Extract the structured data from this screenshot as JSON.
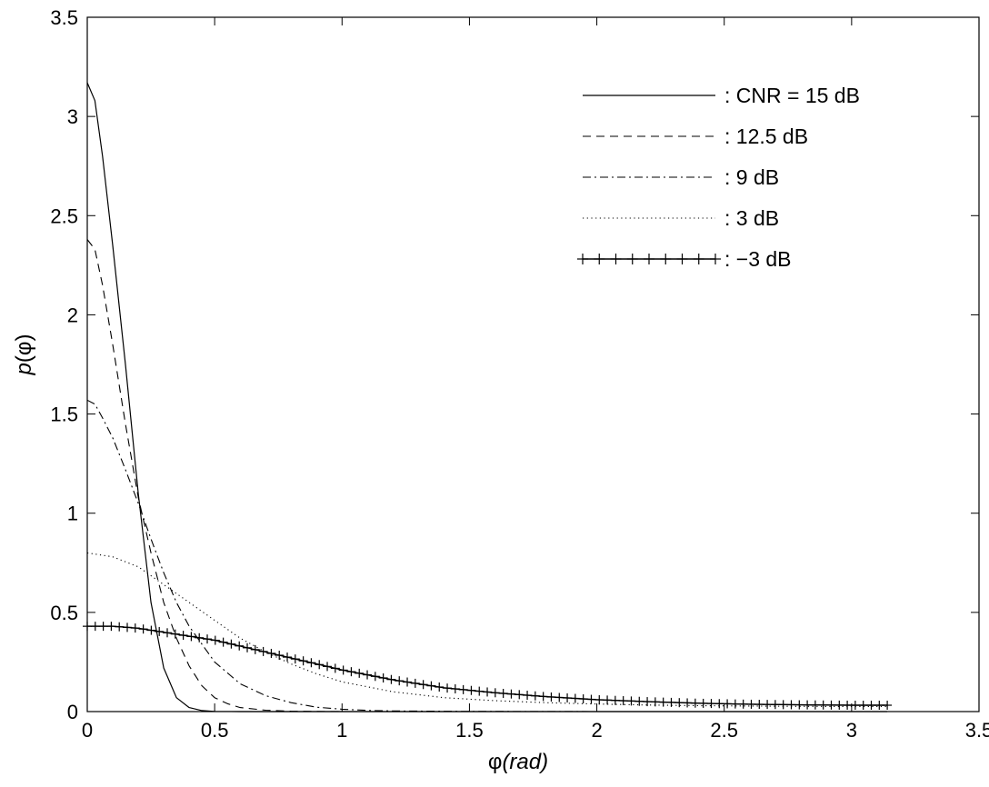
{
  "chart_data": {
    "type": "line",
    "title": "",
    "xlabel_main": "φ",
    "xlabel_sub": "(rad)",
    "ylabel_main": "p",
    "ylabel_sub": "(φ)",
    "xlim": [
      0,
      3.5
    ],
    "ylim": [
      0,
      3.5
    ],
    "x_ticks": [
      "0",
      "0.5",
      "1",
      "1.5",
      "2",
      "2.5",
      "3",
      "3.5"
    ],
    "y_ticks": [
      "0",
      "0.5",
      "1",
      "1.5",
      "2",
      "2.5",
      "3",
      "3.5"
    ],
    "grid": false,
    "legend_position": "top-right",
    "series": [
      {
        "name": ": CNR = 15 dB",
        "style": "solid",
        "x": [
          0,
          0.03,
          0.06,
          0.1,
          0.15,
          0.2,
          0.25,
          0.3,
          0.35,
          0.4,
          0.45,
          0.5,
          0.6,
          0.7,
          1.0,
          2.0,
          3.14
        ],
        "y": [
          3.17,
          3.08,
          2.8,
          2.35,
          1.75,
          1.1,
          0.55,
          0.22,
          0.07,
          0.02,
          0.005,
          0.001,
          0,
          0,
          0,
          0,
          0
        ]
      },
      {
        "name": ": 12.5 dB",
        "style": "dashed",
        "x": [
          0,
          0.03,
          0.06,
          0.1,
          0.15,
          0.2,
          0.25,
          0.3,
          0.35,
          0.4,
          0.45,
          0.5,
          0.55,
          0.6,
          0.7,
          0.8,
          1.0,
          2.0,
          3.14
        ],
        "y": [
          2.38,
          2.33,
          2.15,
          1.85,
          1.45,
          1.08,
          0.8,
          0.55,
          0.37,
          0.23,
          0.13,
          0.07,
          0.04,
          0.02,
          0.007,
          0.002,
          0,
          0,
          0
        ]
      },
      {
        "name": ": 9 dB",
        "style": "dashdot",
        "x": [
          0,
          0.03,
          0.06,
          0.1,
          0.15,
          0.2,
          0.25,
          0.3,
          0.35,
          0.4,
          0.5,
          0.6,
          0.7,
          0.8,
          0.9,
          1.0,
          1.1,
          1.2,
          1.5,
          2.0,
          3.14
        ],
        "y": [
          1.57,
          1.55,
          1.48,
          1.38,
          1.22,
          1.05,
          0.87,
          0.7,
          0.55,
          0.43,
          0.25,
          0.14,
          0.08,
          0.045,
          0.022,
          0.012,
          0.006,
          0.003,
          0.001,
          0,
          0
        ]
      },
      {
        "name": ": 3 dB",
        "style": "dotted",
        "x": [
          0,
          0.1,
          0.2,
          0.3,
          0.4,
          0.5,
          0.6,
          0.7,
          0.8,
          0.9,
          1.0,
          1.2,
          1.4,
          1.6,
          1.8,
          2.0,
          2.2,
          2.4,
          2.6,
          2.8,
          3.0,
          3.14
        ],
        "y": [
          0.8,
          0.78,
          0.73,
          0.64,
          0.55,
          0.46,
          0.37,
          0.3,
          0.24,
          0.19,
          0.15,
          0.1,
          0.07,
          0.055,
          0.045,
          0.038,
          0.033,
          0.03,
          0.028,
          0.026,
          0.025,
          0.025
        ]
      },
      {
        "name": ": −3 dB",
        "style": "plus",
        "x": [
          0,
          0.1,
          0.2,
          0.3,
          0.4,
          0.5,
          0.6,
          0.7,
          0.8,
          0.9,
          1.0,
          1.2,
          1.4,
          1.6,
          1.8,
          2.0,
          2.2,
          2.4,
          2.6,
          2.8,
          3.0,
          3.14
        ],
        "y": [
          0.43,
          0.43,
          0.42,
          0.4,
          0.38,
          0.36,
          0.33,
          0.3,
          0.27,
          0.24,
          0.21,
          0.16,
          0.12,
          0.095,
          0.075,
          0.06,
          0.05,
          0.042,
          0.037,
          0.034,
          0.032,
          0.032
        ]
      }
    ]
  }
}
